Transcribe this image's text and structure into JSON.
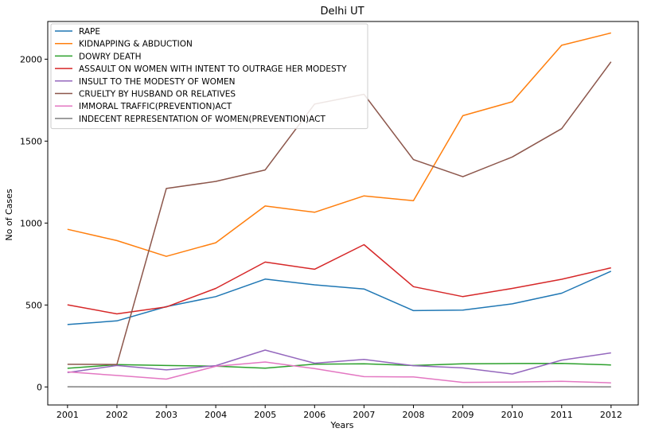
{
  "chart_data": {
    "type": "line",
    "title": "Delhi UT",
    "xlabel": "Years",
    "ylabel": "No of Cases",
    "x": [
      2001,
      2002,
      2003,
      2004,
      2005,
      2006,
      2007,
      2008,
      2009,
      2010,
      2011,
      2012
    ],
    "xlim": [
      2000.6,
      2012.55
    ],
    "ylim": [
      -110,
      2230
    ],
    "yticks": [
      0,
      500,
      1000,
      1500,
      2000
    ],
    "grid": false,
    "legend_position": "top-left",
    "series": [
      {
        "name": "RAPE",
        "color": "#1f77b4",
        "values": [
          381,
          403,
          490,
          551,
          658,
          623,
          598,
          466,
          469,
          507,
          572,
          706
        ]
      },
      {
        "name": "KIDNAPPING & ABDUCTION",
        "color": "#ff7f0e",
        "values": [
          962,
          893,
          797,
          880,
          1104,
          1066,
          1166,
          1136,
          1655,
          1740,
          2085,
          2160
        ]
      },
      {
        "name": "DOWRY DEATH",
        "color": "#2ca02c",
        "values": [
          114,
          136,
          131,
          127,
          115,
          139,
          141,
          131,
          141,
          143,
          144,
          134
        ]
      },
      {
        "name": "ASSAULT ON WOMEN WITH INTENT TO OUTRAGE HER MODESTY",
        "color": "#d62728",
        "values": [
          501,
          446,
          488,
          601,
          762,
          718,
          868,
          612,
          551,
          601,
          657,
          727
        ]
      },
      {
        "name": "INSULT TO THE MODESTY OF WOMEN",
        "color": "#9467bd",
        "values": [
          88,
          131,
          104,
          130,
          225,
          145,
          168,
          130,
          116,
          79,
          164,
          208
        ]
      },
      {
        "name": "CRUELTY BY HUSBAND OR RELATIVES",
        "color": "#8c564b",
        "values": [
          138,
          137,
          1211,
          1254,
          1324,
          1726,
          1786,
          1387,
          1283,
          1403,
          1576,
          1984
        ]
      },
      {
        "name": "IMMORAL TRAFFIC(PREVENTION)ACT",
        "color": "#e377c2",
        "values": [
          92,
          70,
          48,
          126,
          152,
          112,
          63,
          61,
          28,
          30,
          34,
          25
        ]
      },
      {
        "name": "INDECENT REPRESENTATION OF WOMEN(PREVENTION)ACT",
        "color": "#7f7f7f",
        "values": [
          1,
          0,
          0,
          0,
          1,
          2,
          1,
          0,
          0,
          0,
          1,
          0
        ]
      }
    ]
  }
}
